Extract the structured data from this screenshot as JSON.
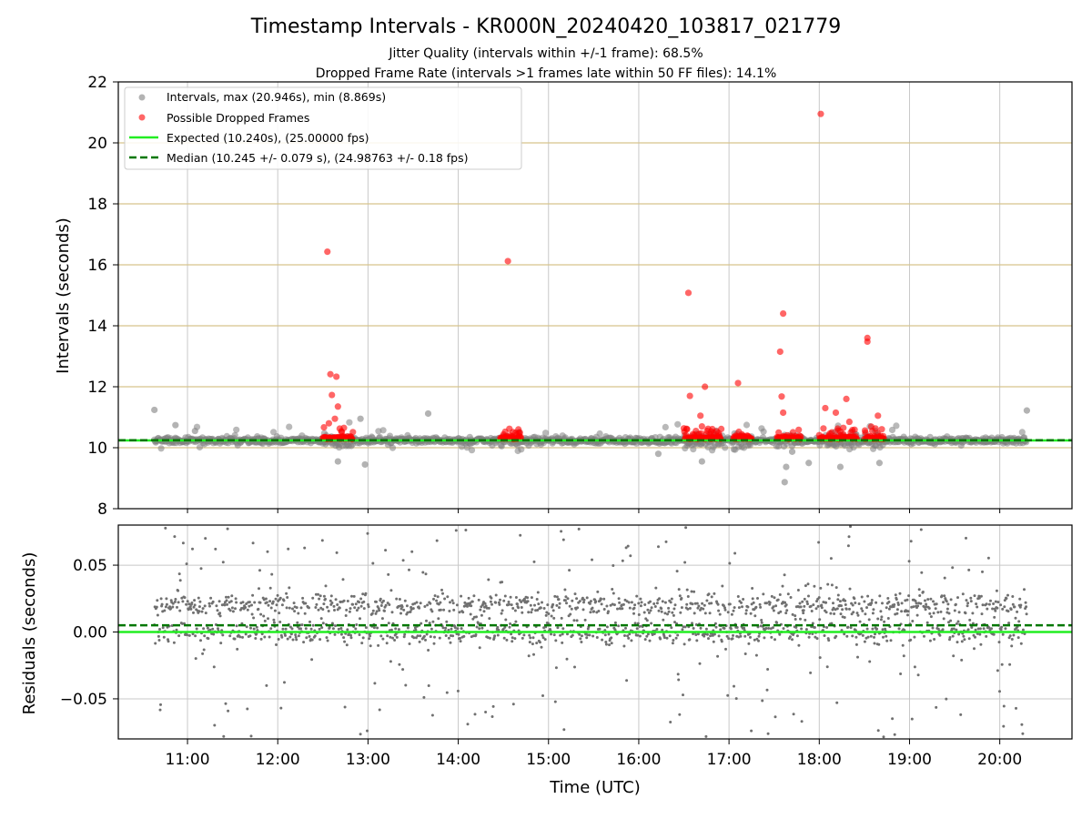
{
  "chart_data": [
    {
      "type": "scatter",
      "title": "Timestamp Intervals - KR000N_20240420_103817_021779",
      "subtitle_lines": [
        "Jitter Quality (intervals within +/-1 frame): 68.5%",
        "Dropped Frame Rate (intervals >1 frames late within 50 FF files): 14.1%"
      ],
      "xlabel": "",
      "ylabel": "Intervals (seconds)",
      "xlim": [
        "10:14",
        "20:48"
      ],
      "ylim": [
        8,
        22
      ],
      "yticks": [
        8,
        10,
        12,
        14,
        16,
        18,
        20,
        22
      ],
      "xticks": [
        "11:00",
        "12:00",
        "13:00",
        "14:00",
        "15:00",
        "16:00",
        "17:00",
        "18:00",
        "19:00",
        "20:00"
      ],
      "grid": "vertical",
      "legend_position": "top-left",
      "series": [
        {
          "name": "Intervals, max (20.946s), min (8.869s)",
          "kind": "scatter",
          "color": "#808080",
          "description_of_points": "dense band around 10.24 s from 10:38 to 20:18, plus outliers",
          "notable_points": [
            [
              "10:38",
              11.24
            ],
            [
              "10:52",
              10.74
            ],
            [
              "11:05",
              10.55
            ],
            [
              "12:40",
              9.55
            ],
            [
              "12:58",
              9.45
            ],
            [
              "12:55",
              10.95
            ],
            [
              "13:40",
              11.12
            ],
            [
              "16:13",
              9.8
            ],
            [
              "17:42",
              9.87
            ],
            [
              "17:37",
              8.87
            ],
            [
              "17:38",
              9.37
            ],
            [
              "17:53",
              9.5
            ],
            [
              "18:14",
              9.37
            ],
            [
              "18:40",
              9.5
            ],
            [
              "20:18",
              11.22
            ],
            [
              "16:42",
              9.55
            ]
          ]
        },
        {
          "name": "Possible Dropped Frames",
          "kind": "scatter",
          "color": "#ff0000",
          "points": [
            [
              "12:33",
              16.43
            ],
            [
              "12:35",
              12.41
            ],
            [
              "12:39",
              12.33
            ],
            [
              "12:36",
              11.73
            ],
            [
              "12:40",
              11.35
            ],
            [
              "12:34",
              10.8
            ],
            [
              "12:38",
              10.95
            ],
            [
              "12:44",
              10.65
            ],
            [
              "14:33",
              16.12
            ],
            [
              "14:34",
              10.62
            ],
            [
              "14:40",
              10.6
            ],
            [
              "16:33",
              15.08
            ],
            [
              "16:34",
              11.7
            ],
            [
              "16:44",
              12.0
            ],
            [
              "16:41",
              11.05
            ],
            [
              "16:42",
              10.7
            ],
            [
              "16:38",
              10.55
            ],
            [
              "17:06",
              12.12
            ],
            [
              "17:36",
              14.4
            ],
            [
              "17:34",
              13.15
            ],
            [
              "17:35",
              11.68
            ],
            [
              "17:36",
              11.15
            ],
            [
              "18:01",
              20.95
            ],
            [
              "18:04",
              11.3
            ],
            [
              "18:11",
              11.15
            ],
            [
              "18:16",
              10.65
            ],
            [
              "18:18",
              11.6
            ],
            [
              "18:20",
              10.85
            ],
            [
              "18:22",
              10.58
            ],
            [
              "18:32",
              13.6
            ],
            [
              "18:32",
              13.48
            ],
            [
              "18:39",
              11.05
            ]
          ],
          "clusters_near_10_3": [
            [
              "12:30",
              "12:50"
            ],
            [
              "14:28",
              "14:42"
            ],
            [
              "16:30",
              "16:55"
            ],
            [
              "17:03",
              "17:15"
            ],
            [
              "17:32",
              "17:48"
            ],
            [
              "18:00",
              "18:25"
            ],
            [
              "18:30",
              "18:43"
            ]
          ]
        },
        {
          "name": "Expected (10.240s), (25.00000 fps)",
          "kind": "hline",
          "y": 10.24,
          "color": "#22ee22"
        },
        {
          "name": "Median (10.245 +/- 0.079 s), (24.98763 +/- 0.18 fps)",
          "kind": "hline_dashed",
          "y": 10.245,
          "color": "#007700"
        }
      ],
      "horizontal_reference_lines": [
        10,
        12,
        14,
        16,
        18,
        20
      ],
      "reference_line_color": "#d6c48c"
    },
    {
      "type": "scatter",
      "xlabel": "Time (UTC)",
      "ylabel": "Residuals (seconds)",
      "xlim": [
        "10:14",
        "20:48"
      ],
      "ylim": [
        -0.08,
        0.08
      ],
      "yticks": [
        -0.05,
        0.0,
        0.05
      ],
      "ytick_labels": [
        "−0.05",
        "0.00",
        "0.05"
      ],
      "xticks": [
        "11:00",
        "12:00",
        "13:00",
        "14:00",
        "15:00",
        "16:00",
        "17:00",
        "18:00",
        "19:00",
        "20:00"
      ],
      "grid": "both",
      "series": [
        {
          "kind": "scatter",
          "color": "#707070",
          "x_range": [
            "10:38",
            "20:18"
          ],
          "band_centers": [
            0.02,
            0.0
          ],
          "spread": 0.08
        },
        {
          "kind": "hline",
          "y": 0.0,
          "color": "#22ee22"
        },
        {
          "kind": "hline_dashed",
          "y": 0.005,
          "color": "#007700"
        }
      ]
    }
  ]
}
